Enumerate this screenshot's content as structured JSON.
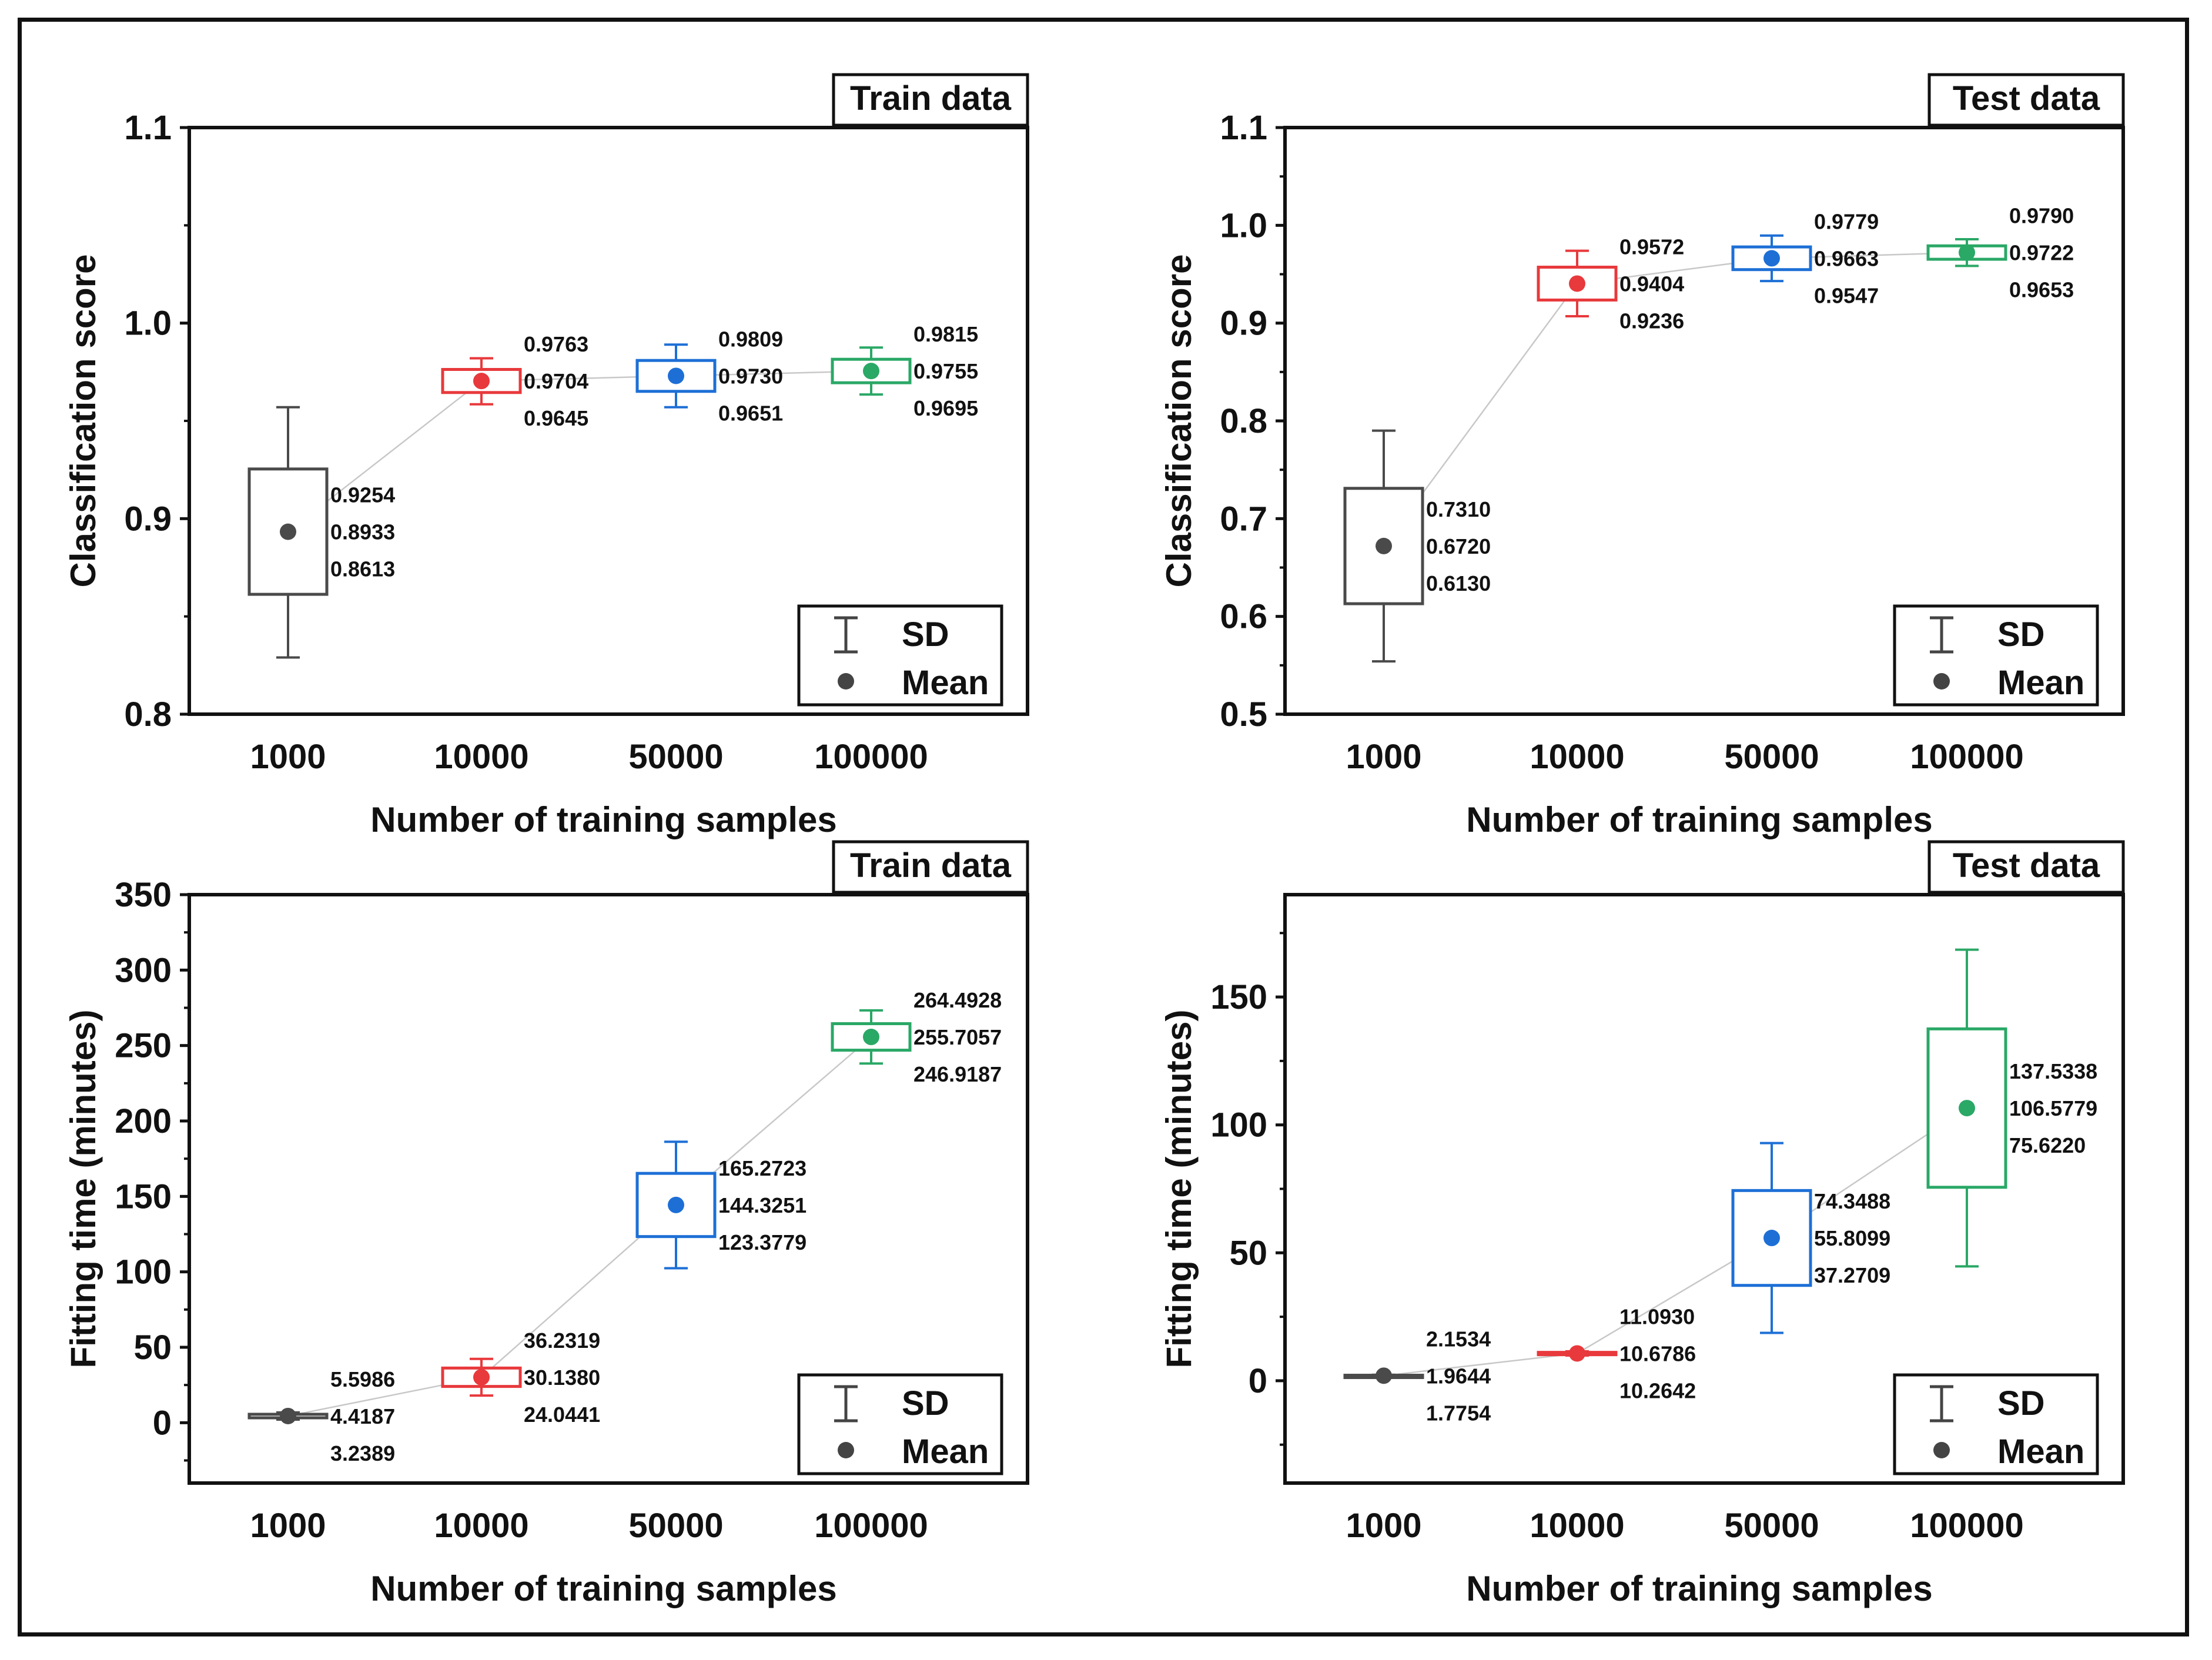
{
  "chart_data": [
    {
      "type": "box",
      "tag": "Train data",
      "xlabel": "Number of training samples",
      "ylabel": "Classification score",
      "categories": [
        "1000",
        "10000",
        "50000",
        "100000"
      ],
      "ylim": [
        0.8,
        1.1
      ],
      "yticks": [
        "0.8",
        "0.9",
        "1.0",
        "1.1"
      ],
      "ytick_values": [
        0.8,
        0.9,
        1.0,
        1.1
      ],
      "yminor_step": 0.05,
      "series": [
        {
          "category": "1000",
          "color": "#4a4a4a",
          "mean": 0.8933,
          "box_low": 0.8613,
          "box_high": 0.9254,
          "whisker_low": 0.829,
          "whisker_high": 0.957,
          "labels": {
            "high": "0.9254",
            "mean": "0.8933",
            "low": "0.8613"
          }
        },
        {
          "category": "10000",
          "color": "#e8393c",
          "mean": 0.9704,
          "box_low": 0.9645,
          "box_high": 0.9763,
          "whisker_low": 0.9585,
          "whisker_high": 0.982,
          "labels": {
            "high": "0.9763",
            "mean": "0.9704",
            "low": "0.9645"
          }
        },
        {
          "category": "50000",
          "color": "#1d6fd6",
          "mean": 0.973,
          "box_low": 0.9651,
          "box_high": 0.9809,
          "whisker_low": 0.957,
          "whisker_high": 0.989,
          "labels": {
            "high": "0.9809",
            "mean": "0.9730",
            "low": "0.9651"
          }
        },
        {
          "category": "100000",
          "color": "#2aa866",
          "mean": 0.9755,
          "box_low": 0.9695,
          "box_high": 0.9815,
          "whisker_low": 0.9635,
          "whisker_high": 0.9875,
          "labels": {
            "high": "0.9815",
            "mean": "0.9755",
            "low": "0.9695"
          }
        }
      ],
      "legend": {
        "sd": "SD",
        "mean": "Mean",
        "position": "bottom-right"
      }
    },
    {
      "type": "box",
      "tag": "Test data",
      "xlabel": "Number of training samples",
      "ylabel": "Classification score",
      "categories": [
        "1000",
        "10000",
        "50000",
        "100000"
      ],
      "ylim": [
        0.5,
        1.1
      ],
      "yticks": [
        "0.5",
        "0.6",
        "0.7",
        "0.8",
        "0.9",
        "1.0",
        "1.1"
      ],
      "ytick_values": [
        0.5,
        0.6,
        0.7,
        0.8,
        0.9,
        1.0,
        1.1
      ],
      "yminor_step": 0.05,
      "series": [
        {
          "category": "1000",
          "color": "#4a4a4a",
          "mean": 0.672,
          "box_low": 0.613,
          "box_high": 0.731,
          "whisker_low": 0.554,
          "whisker_high": 0.79,
          "labels": {
            "high": "0.7310",
            "mean": "0.6720",
            "low": "0.6130"
          }
        },
        {
          "category": "10000",
          "color": "#e8393c",
          "mean": 0.9404,
          "box_low": 0.9236,
          "box_high": 0.9572,
          "whisker_low": 0.907,
          "whisker_high": 0.974,
          "labels": {
            "high": "0.9572",
            "mean": "0.9404",
            "low": "0.9236"
          }
        },
        {
          "category": "50000",
          "color": "#1d6fd6",
          "mean": 0.9663,
          "box_low": 0.9547,
          "box_high": 0.9779,
          "whisker_low": 0.943,
          "whisker_high": 0.9895,
          "labels": {
            "high": "0.9779",
            "mean": "0.9663",
            "low": "0.9547"
          }
        },
        {
          "category": "100000",
          "color": "#2aa866",
          "mean": 0.9722,
          "box_low": 0.9653,
          "box_high": 0.979,
          "whisker_low": 0.9585,
          "whisker_high": 0.9858,
          "labels": {
            "high": "0.9790",
            "mean": "0.9722",
            "low": "0.9653"
          }
        }
      ],
      "legend": {
        "sd": "SD",
        "mean": "Mean",
        "position": "bottom-right"
      }
    },
    {
      "type": "box",
      "tag": "Train data",
      "xlabel": "Number of training samples",
      "ylabel": "Fitting time (minutes)",
      "categories": [
        "1000",
        "10000",
        "50000",
        "100000"
      ],
      "ylim": [
        -40,
        350
      ],
      "yticks": [
        "0",
        "50",
        "100",
        "150",
        "200",
        "250",
        "300",
        "350"
      ],
      "ytick_values": [
        0,
        50,
        100,
        150,
        200,
        250,
        300,
        350
      ],
      "yminor_step": 25,
      "series": [
        {
          "category": "1000",
          "color": "#4a4a4a",
          "mean": 4.4187,
          "box_low": 3.2389,
          "box_high": 5.5986,
          "whisker_low": 2.06,
          "whisker_high": 6.78,
          "labels": {
            "high": "5.5986",
            "mean": "4.4187",
            "low": "3.2389"
          }
        },
        {
          "category": "10000",
          "color": "#e8393c",
          "mean": 30.138,
          "box_low": 24.0441,
          "box_high": 36.2319,
          "whisker_low": 18.0,
          "whisker_high": 42.3,
          "labels": {
            "high": "36.2319",
            "mean": "30.1380",
            "low": "24.0441"
          }
        },
        {
          "category": "50000",
          "color": "#1d6fd6",
          "mean": 144.3251,
          "box_low": 123.3779,
          "box_high": 165.2723,
          "whisker_low": 102.4,
          "whisker_high": 186.2,
          "labels": {
            "high": "165.2723",
            "mean": "144.3251",
            "low": "123.3779"
          }
        },
        {
          "category": "100000",
          "color": "#2aa866",
          "mean": 255.7057,
          "box_low": 246.9187,
          "box_high": 264.4928,
          "whisker_low": 238.1,
          "whisker_high": 273.3,
          "labels": {
            "high": "264.4928",
            "mean": "255.7057",
            "low": "246.9187"
          }
        }
      ],
      "legend": {
        "sd": "SD",
        "mean": "Mean",
        "position": "bottom-right"
      }
    },
    {
      "type": "box",
      "tag": "Test data",
      "xlabel": "Number of training samples",
      "ylabel": "Fitting time (minutes)",
      "categories": [
        "1000",
        "10000",
        "50000",
        "100000"
      ],
      "ylim": [
        -40,
        190
      ],
      "yticks": [
        "0",
        "50",
        "100",
        "150"
      ],
      "ytick_values": [
        0,
        50,
        100,
        150
      ],
      "yminor_step": 25,
      "series": [
        {
          "category": "1000",
          "color": "#4a4a4a",
          "mean": 1.9644,
          "box_low": 1.7754,
          "box_high": 2.1534,
          "whisker_low": 1.59,
          "whisker_high": 2.34,
          "labels": {
            "high": "2.1534",
            "mean": "1.9644",
            "low": "1.7754"
          }
        },
        {
          "category": "10000",
          "color": "#e8393c",
          "mean": 10.6786,
          "box_low": 10.2642,
          "box_high": 11.093,
          "whisker_low": 9.85,
          "whisker_high": 11.5,
          "labels": {
            "high": "11.0930",
            "mean": "10.6786",
            "low": "10.2642"
          }
        },
        {
          "category": "50000",
          "color": "#1d6fd6",
          "mean": 55.8099,
          "box_low": 37.2709,
          "box_high": 74.3488,
          "whisker_low": 18.7,
          "whisker_high": 92.9,
          "labels": {
            "high": "74.3488",
            "mean": "55.8099",
            "low": "37.2709"
          }
        },
        {
          "category": "100000",
          "color": "#2aa866",
          "mean": 106.5779,
          "box_low": 75.622,
          "box_high": 137.5338,
          "whisker_low": 44.7,
          "whisker_high": 168.5,
          "labels": {
            "high": "137.5338",
            "mean": "106.5779",
            "low": "75.6220"
          }
        }
      ],
      "legend": {
        "sd": "SD",
        "mean": "Mean",
        "position": "bottom-right"
      }
    }
  ]
}
